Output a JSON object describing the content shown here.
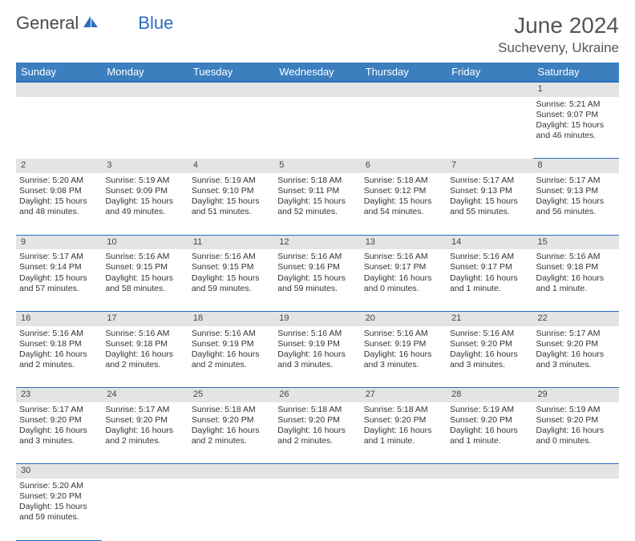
{
  "logo": {
    "text1": "General",
    "text2": "Blue"
  },
  "title": "June 2024",
  "location": "Sucheveny, Ukraine",
  "colors": {
    "header_bg": "#3b7fbf",
    "header_border": "#2a6dbf",
    "daynum_bg": "#e4e4e4",
    "text": "#333333",
    "title_text": "#555555"
  },
  "day_headers": [
    "Sunday",
    "Monday",
    "Tuesday",
    "Wednesday",
    "Thursday",
    "Friday",
    "Saturday"
  ],
  "weeks": [
    {
      "nums": [
        "",
        "",
        "",
        "",
        "",
        "",
        "1"
      ],
      "cells": [
        null,
        null,
        null,
        null,
        null,
        null,
        {
          "sunrise": "5:21 AM",
          "sunset": "9:07 PM",
          "day": "15 hours and 46 minutes."
        }
      ]
    },
    {
      "nums": [
        "2",
        "3",
        "4",
        "5",
        "6",
        "7",
        "8"
      ],
      "cells": [
        {
          "sunrise": "5:20 AM",
          "sunset": "9:08 PM",
          "day": "15 hours and 48 minutes."
        },
        {
          "sunrise": "5:19 AM",
          "sunset": "9:09 PM",
          "day": "15 hours and 49 minutes."
        },
        {
          "sunrise": "5:19 AM",
          "sunset": "9:10 PM",
          "day": "15 hours and 51 minutes."
        },
        {
          "sunrise": "5:18 AM",
          "sunset": "9:11 PM",
          "day": "15 hours and 52 minutes."
        },
        {
          "sunrise": "5:18 AM",
          "sunset": "9:12 PM",
          "day": "15 hours and 54 minutes."
        },
        {
          "sunrise": "5:17 AM",
          "sunset": "9:13 PM",
          "day": "15 hours and 55 minutes."
        },
        {
          "sunrise": "5:17 AM",
          "sunset": "9:13 PM",
          "day": "15 hours and 56 minutes."
        }
      ]
    },
    {
      "nums": [
        "9",
        "10",
        "11",
        "12",
        "13",
        "14",
        "15"
      ],
      "cells": [
        {
          "sunrise": "5:17 AM",
          "sunset": "9:14 PM",
          "day": "15 hours and 57 minutes."
        },
        {
          "sunrise": "5:16 AM",
          "sunset": "9:15 PM",
          "day": "15 hours and 58 minutes."
        },
        {
          "sunrise": "5:16 AM",
          "sunset": "9:15 PM",
          "day": "15 hours and 59 minutes."
        },
        {
          "sunrise": "5:16 AM",
          "sunset": "9:16 PM",
          "day": "15 hours and 59 minutes."
        },
        {
          "sunrise": "5:16 AM",
          "sunset": "9:17 PM",
          "day": "16 hours and 0 minutes."
        },
        {
          "sunrise": "5:16 AM",
          "sunset": "9:17 PM",
          "day": "16 hours and 1 minute."
        },
        {
          "sunrise": "5:16 AM",
          "sunset": "9:18 PM",
          "day": "16 hours and 1 minute."
        }
      ]
    },
    {
      "nums": [
        "16",
        "17",
        "18",
        "19",
        "20",
        "21",
        "22"
      ],
      "cells": [
        {
          "sunrise": "5:16 AM",
          "sunset": "9:18 PM",
          "day": "16 hours and 2 minutes."
        },
        {
          "sunrise": "5:16 AM",
          "sunset": "9:18 PM",
          "day": "16 hours and 2 minutes."
        },
        {
          "sunrise": "5:16 AM",
          "sunset": "9:19 PM",
          "day": "16 hours and 2 minutes."
        },
        {
          "sunrise": "5:16 AM",
          "sunset": "9:19 PM",
          "day": "16 hours and 3 minutes."
        },
        {
          "sunrise": "5:16 AM",
          "sunset": "9:19 PM",
          "day": "16 hours and 3 minutes."
        },
        {
          "sunrise": "5:16 AM",
          "sunset": "9:20 PM",
          "day": "16 hours and 3 minutes."
        },
        {
          "sunrise": "5:17 AM",
          "sunset": "9:20 PM",
          "day": "16 hours and 3 minutes."
        }
      ]
    },
    {
      "nums": [
        "23",
        "24",
        "25",
        "26",
        "27",
        "28",
        "29"
      ],
      "cells": [
        {
          "sunrise": "5:17 AM",
          "sunset": "9:20 PM",
          "day": "16 hours and 3 minutes."
        },
        {
          "sunrise": "5:17 AM",
          "sunset": "9:20 PM",
          "day": "16 hours and 2 minutes."
        },
        {
          "sunrise": "5:18 AM",
          "sunset": "9:20 PM",
          "day": "16 hours and 2 minutes."
        },
        {
          "sunrise": "5:18 AM",
          "sunset": "9:20 PM",
          "day": "16 hours and 2 minutes."
        },
        {
          "sunrise": "5:18 AM",
          "sunset": "9:20 PM",
          "day": "16 hours and 1 minute."
        },
        {
          "sunrise": "5:19 AM",
          "sunset": "9:20 PM",
          "day": "16 hours and 1 minute."
        },
        {
          "sunrise": "5:19 AM",
          "sunset": "9:20 PM",
          "day": "16 hours and 0 minutes."
        }
      ]
    },
    {
      "nums": [
        "30",
        "",
        "",
        "",
        "",
        "",
        ""
      ],
      "cells": [
        {
          "sunrise": "5:20 AM",
          "sunset": "9:20 PM",
          "day": "15 hours and 59 minutes."
        },
        null,
        null,
        null,
        null,
        null,
        null
      ]
    }
  ],
  "labels": {
    "sunrise": "Sunrise:",
    "sunset": "Sunset:",
    "daylight": "Daylight:"
  }
}
